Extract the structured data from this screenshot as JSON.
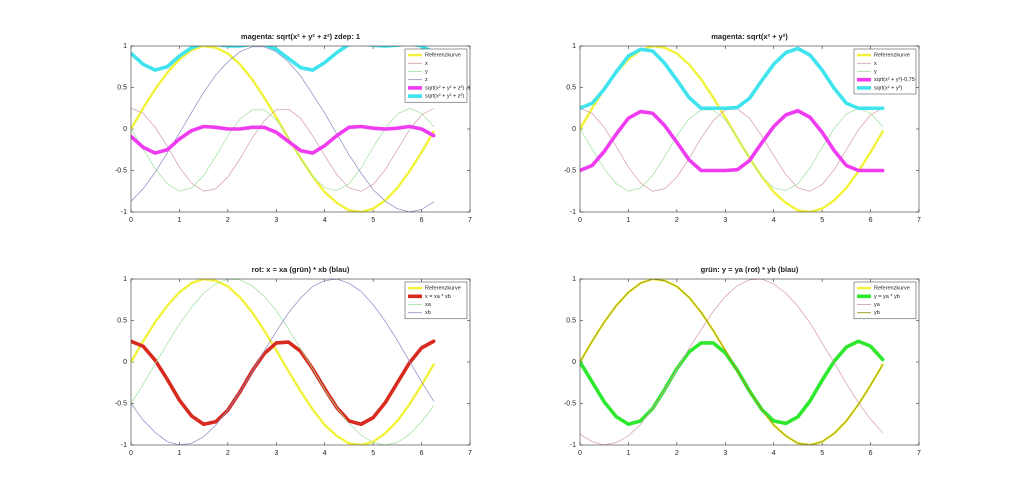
{
  "chart_data": [
    {
      "type": "line",
      "title": "magenta: sqrt(x² + y² + z²) zdep: 1",
      "legend": "northeast",
      "x": [
        0,
        0.25,
        0.5,
        0.75,
        1,
        1.25,
        1.5,
        1.75,
        2,
        2.25,
        2.5,
        2.75,
        3,
        3.25,
        3.5,
        3.75,
        4,
        4.25,
        4.5,
        4.75,
        5,
        5.25,
        5.5,
        5.75,
        6,
        6.25
      ],
      "xlim": [
        0,
        7
      ],
      "xticks": [
        0,
        1,
        2,
        3,
        4,
        5,
        6,
        7
      ],
      "ylim": [
        -1,
        1
      ],
      "yticks": [
        -1,
        -0.5,
        0,
        0.5,
        1
      ],
      "series": [
        {
          "name": "Referenzkurve",
          "color": "#f2f23a",
          "values": [
            0,
            0.25,
            0.48,
            0.68,
            0.84,
            0.95,
            1.0,
            0.98,
            0.91,
            0.78,
            0.6,
            0.38,
            0.14,
            -0.11,
            -0.35,
            -0.57,
            -0.76,
            -0.89,
            -0.98,
            -1.0,
            -0.96,
            -0.86,
            -0.71,
            -0.51,
            -0.28,
            -0.03
          ]
        },
        {
          "name": "x",
          "color": "#d49aa8",
          "values": [
            0.25,
            0.19,
            0.02,
            -0.21,
            -0.46,
            -0.65,
            -0.75,
            -0.72,
            -0.58,
            -0.36,
            -0.11,
            0.1,
            0.23,
            0.24,
            0.13,
            -0.08,
            -0.32,
            -0.55,
            -0.71,
            -0.75,
            -0.67,
            -0.49,
            -0.25,
            -0.01,
            0.17,
            0.25
          ]
        },
        {
          "name": "y",
          "color": "#9ee09e",
          "values": [
            0,
            -0.24,
            -0.48,
            -0.66,
            -0.75,
            -0.71,
            -0.56,
            -0.33,
            -0.08,
            0.12,
            0.23,
            0.23,
            0.11,
            -0.1,
            -0.35,
            -0.57,
            -0.71,
            -0.74,
            -0.66,
            -0.47,
            -0.22,
            0.01,
            0.18,
            0.25,
            0.19,
            0.03
          ]
        },
        {
          "name": "z",
          "color": "#8a8ac4",
          "values": [
            -0.87,
            -0.72,
            -0.52,
            -0.29,
            -0.05,
            0.2,
            0.44,
            0.65,
            0.81,
            0.93,
            0.99,
            0.99,
            0.93,
            0.81,
            0.64,
            0.42,
            0.19,
            -0.06,
            -0.31,
            -0.53,
            -0.73,
            -0.87,
            -0.96,
            -1.0,
            -0.97,
            -0.88
          ]
        },
        {
          "name": "sqrt(x² + y² + z²) -1",
          "color": "#f03cf0",
          "values": [
            -0.09,
            -0.22,
            -0.29,
            -0.25,
            -0.12,
            -0.02,
            0.03,
            0.02,
            0.0,
            0.0,
            0.02,
            0.02,
            -0.04,
            -0.15,
            -0.26,
            -0.29,
            -0.2,
            -0.08,
            0.02,
            0.03,
            0.01,
            0.0,
            0.01,
            0.03,
            0.0,
            -0.08
          ]
        },
        {
          "name": "sqrt(x² + y² + z²)",
          "color": "#40e4ee",
          "values": [
            0.91,
            0.78,
            0.71,
            0.75,
            0.88,
            0.98,
            1.03,
            1.02,
            1.0,
            1.0,
            1.02,
            1.02,
            0.96,
            0.85,
            0.74,
            0.71,
            0.8,
            0.92,
            1.02,
            1.03,
            1.01,
            1.0,
            1.01,
            1.03,
            1.0,
            0.92
          ]
        }
      ]
    },
    {
      "type": "line",
      "title": "magenta: sqrt(x² + y²)",
      "legend": "northeast",
      "x": [
        0,
        0.25,
        0.5,
        0.75,
        1,
        1.25,
        1.5,
        1.75,
        2,
        2.25,
        2.5,
        2.75,
        3,
        3.25,
        3.5,
        3.75,
        4,
        4.25,
        4.5,
        4.75,
        5,
        5.25,
        5.5,
        5.75,
        6,
        6.25
      ],
      "xlim": [
        0,
        7
      ],
      "xticks": [
        0,
        1,
        2,
        3,
        4,
        5,
        6,
        7
      ],
      "ylim": [
        -1,
        1
      ],
      "yticks": [
        -1,
        -0.5,
        0,
        0.5,
        1
      ],
      "series": [
        {
          "name": "Referenzkurve",
          "color": "#f2f23a",
          "values": [
            0,
            0.25,
            0.48,
            0.68,
            0.84,
            0.95,
            1.0,
            0.98,
            0.91,
            0.78,
            0.6,
            0.38,
            0.14,
            -0.11,
            -0.35,
            -0.57,
            -0.76,
            -0.89,
            -0.98,
            -1.0,
            -0.96,
            -0.86,
            -0.71,
            -0.51,
            -0.28,
            -0.03
          ]
        },
        {
          "name": "x",
          "color": "#d49aa8",
          "values": [
            0.25,
            0.19,
            0.02,
            -0.21,
            -0.46,
            -0.65,
            -0.75,
            -0.72,
            -0.58,
            -0.36,
            -0.11,
            0.1,
            0.23,
            0.24,
            0.13,
            -0.08,
            -0.32,
            -0.55,
            -0.71,
            -0.75,
            -0.67,
            -0.49,
            -0.25,
            -0.01,
            0.17,
            0.25
          ]
        },
        {
          "name": "y",
          "color": "#9ee09e",
          "values": [
            0,
            -0.24,
            -0.48,
            -0.66,
            -0.75,
            -0.71,
            -0.56,
            -0.33,
            -0.08,
            0.12,
            0.23,
            0.23,
            0.11,
            -0.1,
            -0.35,
            -0.57,
            -0.71,
            -0.74,
            -0.66,
            -0.47,
            -0.22,
            0.01,
            0.18,
            0.25,
            0.19,
            0.03
          ]
        },
        {
          "name": "sqrt(x² + y²)-0,75",
          "color": "#f03cf0",
          "values": [
            -0.5,
            -0.44,
            -0.27,
            -0.06,
            0.13,
            0.21,
            0.19,
            0.04,
            -0.16,
            -0.37,
            -0.5,
            -0.5,
            -0.5,
            -0.49,
            -0.38,
            -0.17,
            0.03,
            0.17,
            0.22,
            0.14,
            -0.04,
            -0.26,
            -0.44,
            -0.5,
            -0.5,
            -0.5
          ]
        },
        {
          "name": "sqrt(x² + y²)",
          "color": "#40e4ee",
          "values": [
            0.25,
            0.31,
            0.48,
            0.69,
            0.88,
            0.96,
            0.94,
            0.79,
            0.59,
            0.38,
            0.25,
            0.25,
            0.25,
            0.26,
            0.37,
            0.58,
            0.78,
            0.92,
            0.97,
            0.89,
            0.71,
            0.49,
            0.31,
            0.25,
            0.25,
            0.25
          ]
        }
      ]
    },
    {
      "type": "line",
      "title": "rot: x = xa (grün) * xb (blau)",
      "legend": "northeast",
      "x": [
        0,
        0.25,
        0.5,
        0.75,
        1,
        1.25,
        1.5,
        1.75,
        2,
        2.25,
        2.5,
        2.75,
        3,
        3.25,
        3.5,
        3.75,
        4,
        4.25,
        4.5,
        4.75,
        5,
        5.25,
        5.5,
        5.75,
        6,
        6.25
      ],
      "xlim": [
        0,
        7
      ],
      "xticks": [
        0,
        1,
        2,
        3,
        4,
        5,
        6,
        7
      ],
      "ylim": [
        -1,
        1
      ],
      "yticks": [
        -1,
        -0.5,
        0,
        0.5,
        1
      ],
      "series": [
        {
          "name": "Referenzkurve",
          "color": "#f2f23a",
          "values": [
            0,
            0.25,
            0.48,
            0.68,
            0.84,
            0.95,
            1.0,
            0.98,
            0.91,
            0.78,
            0.6,
            0.38,
            0.14,
            -0.11,
            -0.35,
            -0.57,
            -0.76,
            -0.89,
            -0.98,
            -1.0,
            -0.96,
            -0.86,
            -0.71,
            -0.51,
            -0.28,
            -0.03
          ]
        },
        {
          "name": "x = xa * xb",
          "color": "#d82a1e",
          "values": [
            0.25,
            0.19,
            0.02,
            -0.21,
            -0.46,
            -0.65,
            -0.75,
            -0.72,
            -0.58,
            -0.36,
            -0.11,
            0.1,
            0.23,
            0.24,
            0.13,
            -0.08,
            -0.32,
            -0.55,
            -0.71,
            -0.75,
            -0.67,
            -0.49,
            -0.25,
            -0.01,
            0.17,
            0.25
          ]
        },
        {
          "name": "xa",
          "color": "#9ee09e",
          "values": [
            -0.5,
            -0.27,
            -0.02,
            0.22,
            0.46,
            0.66,
            0.83,
            0.94,
            1.0,
            0.99,
            0.92,
            0.79,
            0.62,
            0.4,
            0.16,
            -0.08,
            -0.33,
            -0.55,
            -0.74,
            -0.88,
            -0.97,
            -1.0,
            -0.97,
            -0.87,
            -0.72,
            -0.53
          ]
        },
        {
          "name": "xb",
          "color": "#8a8ac4",
          "values": [
            -0.5,
            -0.7,
            -0.85,
            -0.96,
            -1.0,
            -0.98,
            -0.9,
            -0.76,
            -0.58,
            -0.36,
            -0.12,
            0.13,
            0.37,
            0.59,
            0.77,
            0.91,
            0.98,
            1.0,
            0.95,
            0.85,
            0.69,
            0.49,
            0.26,
            0.01,
            -0.24,
            -0.47
          ]
        }
      ]
    },
    {
      "type": "line",
      "title": "grün: y = ya (rot) * yb (blau)",
      "legend": "northeast",
      "x": [
        0,
        0.25,
        0.5,
        0.75,
        1,
        1.25,
        1.5,
        1.75,
        2,
        2.25,
        2.5,
        2.75,
        3,
        3.25,
        3.5,
        3.75,
        4,
        4.25,
        4.5,
        4.75,
        5,
        5.25,
        5.5,
        5.75,
        6,
        6.25
      ],
      "xlim": [
        0,
        7
      ],
      "xticks": [
        0,
        1,
        2,
        3,
        4,
        5,
        6,
        7
      ],
      "ylim": [
        -1,
        1
      ],
      "yticks": [
        -1,
        -0.5,
        0,
        0.5,
        1
      ],
      "series": [
        {
          "name": "Referenzkurve",
          "color": "#f2f23a",
          "values": [
            0,
            0.25,
            0.48,
            0.68,
            0.84,
            0.95,
            1.0,
            0.98,
            0.91,
            0.78,
            0.6,
            0.38,
            0.14,
            -0.11,
            -0.35,
            -0.57,
            -0.76,
            -0.89,
            -0.98,
            -1.0,
            -0.96,
            -0.86,
            -0.71,
            -0.51,
            -0.28,
            -0.03
          ]
        },
        {
          "name": "y = ya * yb",
          "color": "#2ee82e",
          "values": [
            0,
            -0.24,
            -0.48,
            -0.66,
            -0.75,
            -0.71,
            -0.56,
            -0.33,
            -0.08,
            0.12,
            0.23,
            0.23,
            0.11,
            -0.1,
            -0.35,
            -0.57,
            -0.71,
            -0.74,
            -0.66,
            -0.47,
            -0.22,
            0.01,
            0.18,
            0.25,
            0.19,
            0.03
          ]
        },
        {
          "name": "ya",
          "color": "#d49aa8",
          "values": [
            -0.87,
            -0.96,
            -1.0,
            -0.97,
            -0.89,
            -0.75,
            -0.56,
            -0.34,
            -0.09,
            0.16,
            0.39,
            0.61,
            0.79,
            0.92,
            0.99,
            1.0,
            0.94,
            0.83,
            0.67,
            0.47,
            0.23,
            -0.01,
            -0.26,
            -0.49,
            -0.69,
            -0.85
          ]
        },
        {
          "name": "yb",
          "color": "#9a9a1c",
          "values": [
            0,
            0.25,
            0.48,
            0.68,
            0.84,
            0.95,
            1.0,
            0.98,
            0.91,
            0.78,
            0.6,
            0.38,
            0.14,
            -0.11,
            -0.35,
            -0.57,
            -0.76,
            -0.89,
            -0.98,
            -1.0,
            -0.96,
            -0.86,
            -0.71,
            -0.51,
            -0.28,
            -0.03
          ]
        }
      ]
    }
  ]
}
